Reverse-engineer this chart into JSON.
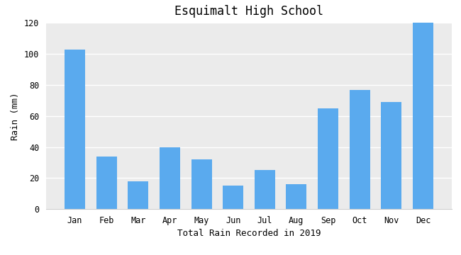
{
  "title": "Esquimalt High School",
  "xlabel": "Total Rain Recorded in 2019",
  "ylabel": "Rain (mm)",
  "categories": [
    "Jan",
    "Feb",
    "Mar",
    "Apr",
    "May",
    "Jun",
    "Jul",
    "Aug",
    "Sep",
    "Oct",
    "Nov",
    "Dec"
  ],
  "values": [
    103,
    34,
    18,
    40,
    32,
    15,
    25,
    16,
    65,
    77,
    69,
    120
  ],
  "bar_color": "#5aaaee",
  "ylim": [
    0,
    120
  ],
  "yticks": [
    0,
    20,
    40,
    60,
    80,
    100,
    120
  ],
  "background_color": "#ebebeb",
  "fig_background_color": "#ffffff",
  "title_fontsize": 12,
  "label_fontsize": 9,
  "tick_fontsize": 8.5
}
